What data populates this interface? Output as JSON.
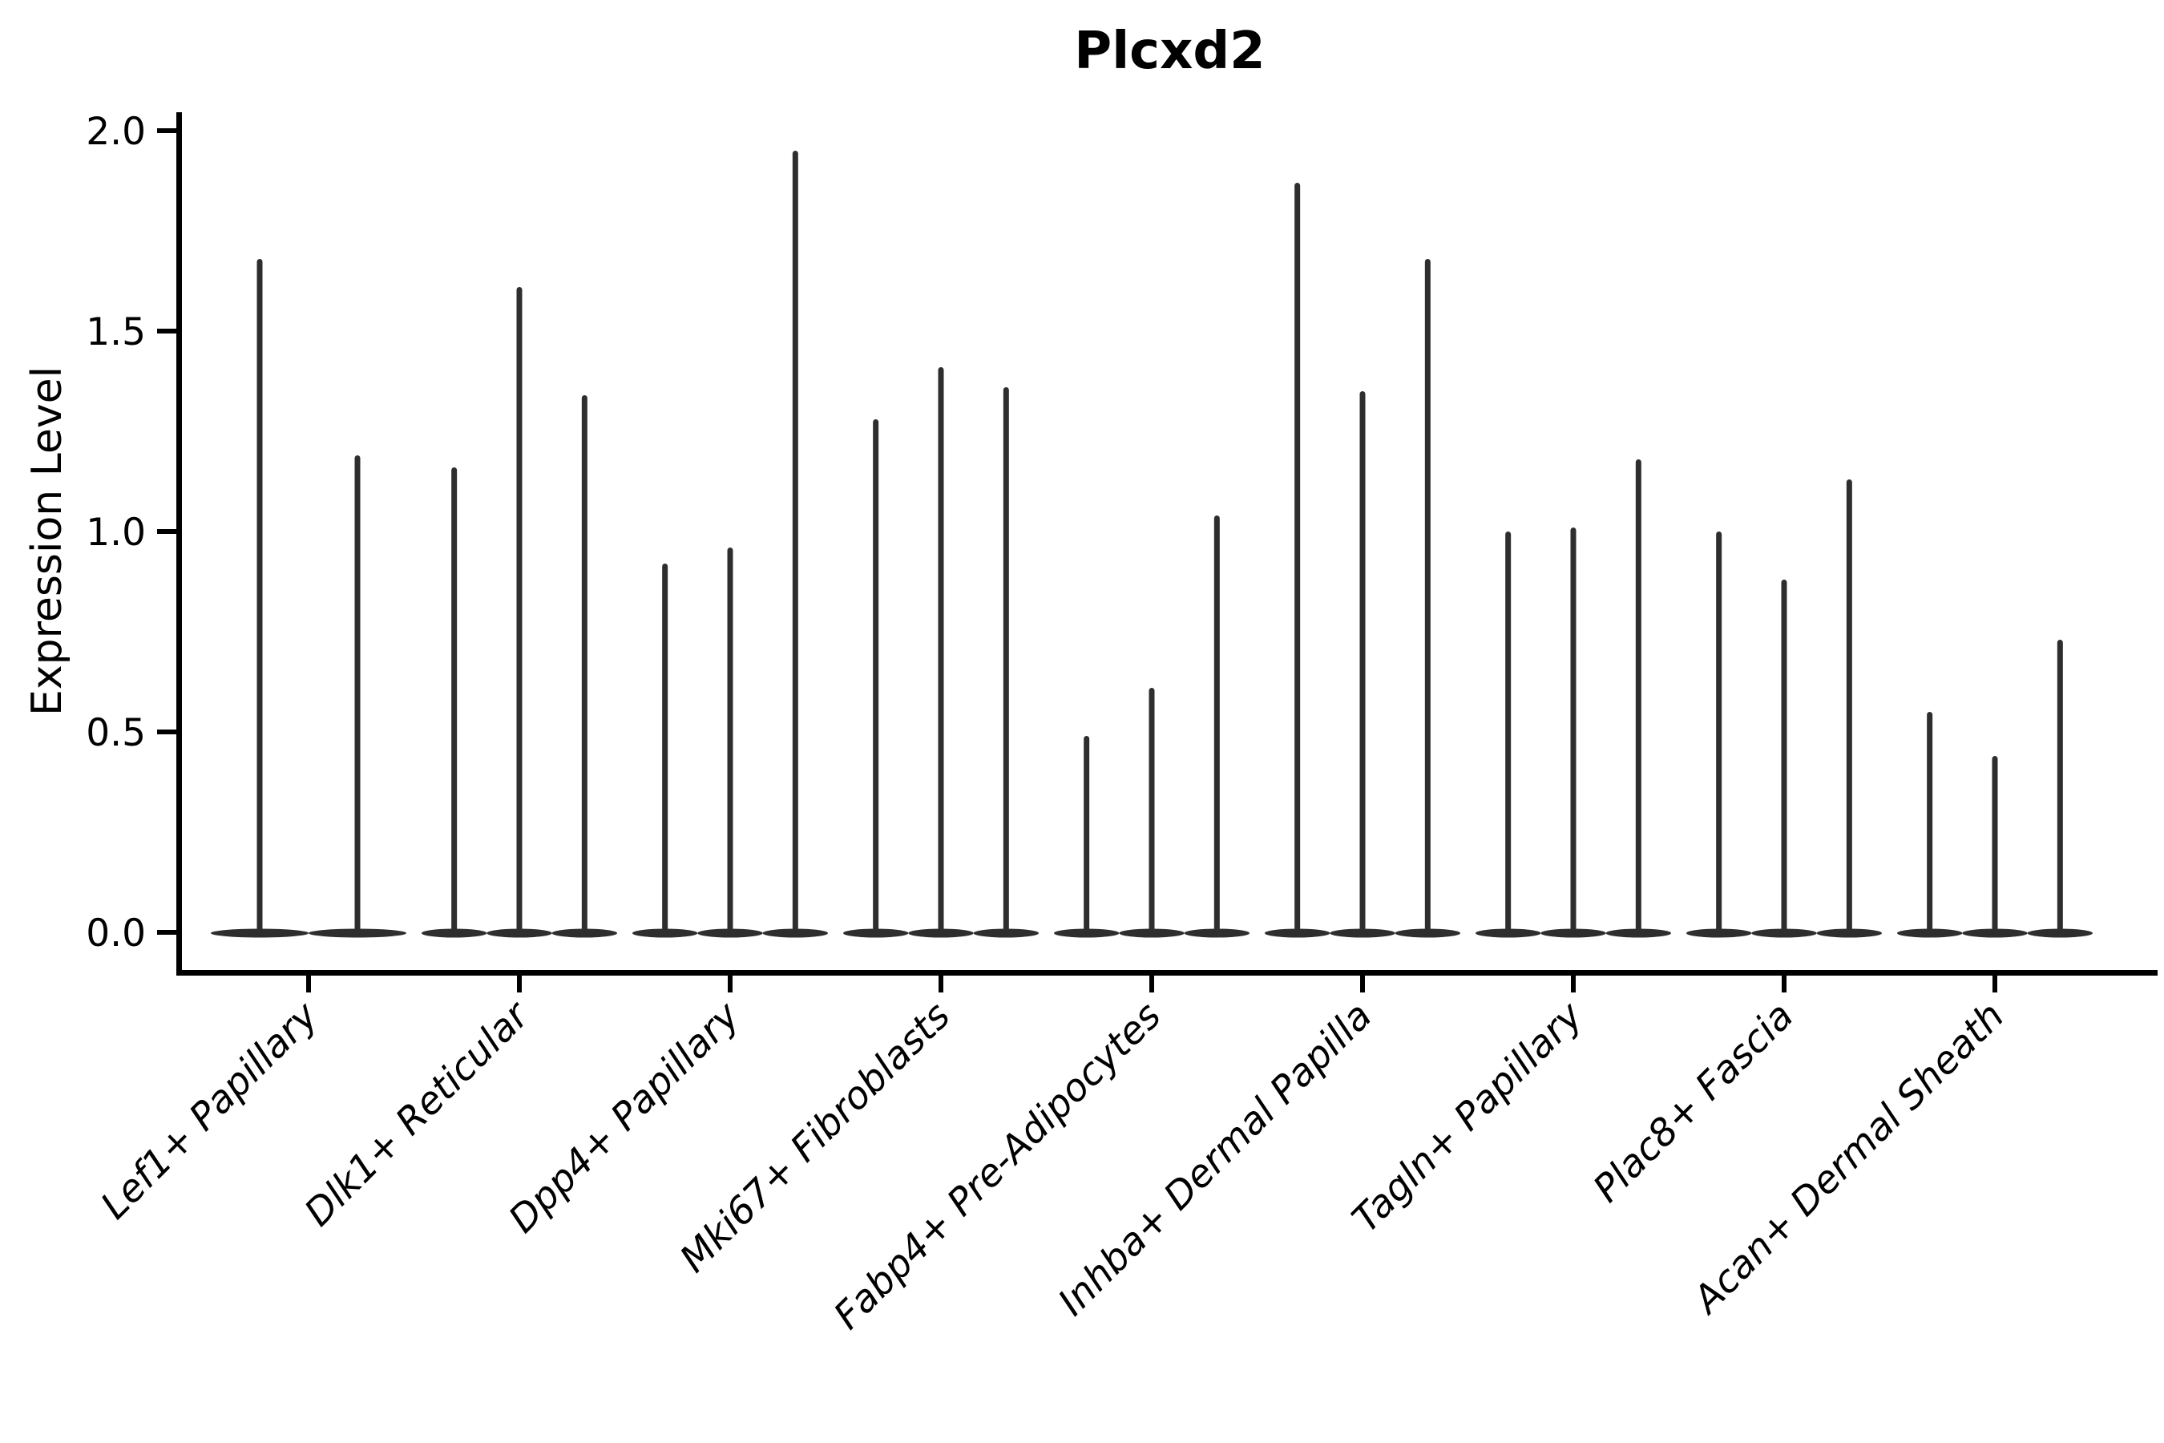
{
  "title": "Plcxd2",
  "ylabel": "Expression Level",
  "chart_data": {
    "type": "violin",
    "title": "Plcxd2",
    "xlabel": "",
    "ylabel": "Expression Level",
    "ylim": [
      -0.09,
      2.05
    ],
    "yticks": [
      "0.0",
      "0.5",
      "1.0",
      "1.5",
      "2.0"
    ],
    "grid": false,
    "legend": false,
    "xtick_rotation": 45,
    "note": "Thin violin plot; each category holds narrow violins flattened at 0 with a spike to its max expression value",
    "categories": [
      "Lef1+ Papillary",
      "Dlk1+ Reticular",
      "Dpp4+ Papillary",
      "Mki67+ Fibroblasts",
      "Fabp4+ Pre-Adipocytes",
      "Inhba+ Dermal Papilla",
      "Tagln+ Papillary",
      "Plac8+ Fascia",
      "Acan+ Dermal Sheath"
    ],
    "groups": [
      {
        "label": "Lef1+ Papillary",
        "values": [
          1.68,
          1.19
        ]
      },
      {
        "label": "Dlk1+ Reticular",
        "values": [
          1.16,
          1.61,
          1.34
        ]
      },
      {
        "label": "Dpp4+ Papillary",
        "values": [
          0.92,
          0.96,
          1.95
        ]
      },
      {
        "label": "Mki67+ Fibroblasts",
        "values": [
          1.28,
          1.41,
          1.36
        ]
      },
      {
        "label": "Fabp4+ Pre-Adipocytes",
        "values": [
          0.49,
          0.61,
          1.04
        ]
      },
      {
        "label": "Inhba+ Dermal Papilla",
        "values": [
          1.87,
          1.35,
          1.68
        ]
      },
      {
        "label": "Tagln+ Papillary",
        "values": [
          1.0,
          1.01,
          1.18
        ]
      },
      {
        "label": "Plac8+ Fascia",
        "values": [
          1.0,
          0.88,
          1.13
        ]
      },
      {
        "label": "Acan+ Dermal Sheath",
        "values": [
          0.55,
          0.44,
          0.73
        ]
      }
    ]
  },
  "colors": {
    "background": "#ffffff",
    "violin": "#2e2e2e",
    "axis": "#000000",
    "text": "#000000"
  }
}
